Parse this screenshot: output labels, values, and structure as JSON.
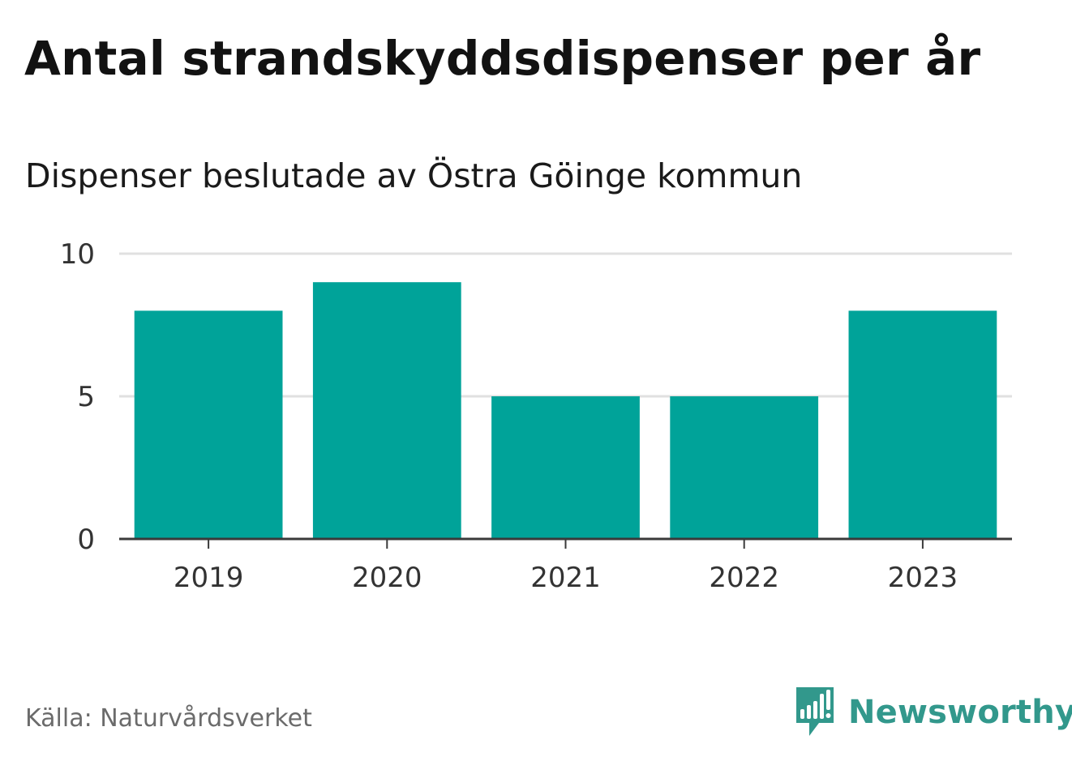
{
  "header": {
    "title": "Antal strandskyddsdispenser per år",
    "subtitle": "Dispenser beslutade av Östra Göinge kommun"
  },
  "footer": {
    "source": "Källa: Naturvårdsverket",
    "brand": "Newsworthy",
    "brand_icon": "newsworthy-logo-icon"
  },
  "colors": {
    "bar": "#00a399",
    "brand": "#32988c",
    "grid": "#e0e0e0",
    "axis": "#3a3a3a"
  },
  "chart_data": {
    "type": "bar",
    "title": "Antal strandskyddsdispenser per år",
    "subtitle": "Dispenser beslutade av Östra Göinge kommun",
    "categories": [
      "2019",
      "2020",
      "2021",
      "2022",
      "2023"
    ],
    "values": [
      8,
      9,
      5,
      5,
      8
    ],
    "xlabel": "",
    "ylabel": "",
    "ylim": [
      0,
      10
    ],
    "yticks": [
      0,
      5,
      10
    ],
    "grid": true,
    "legend": "none"
  }
}
